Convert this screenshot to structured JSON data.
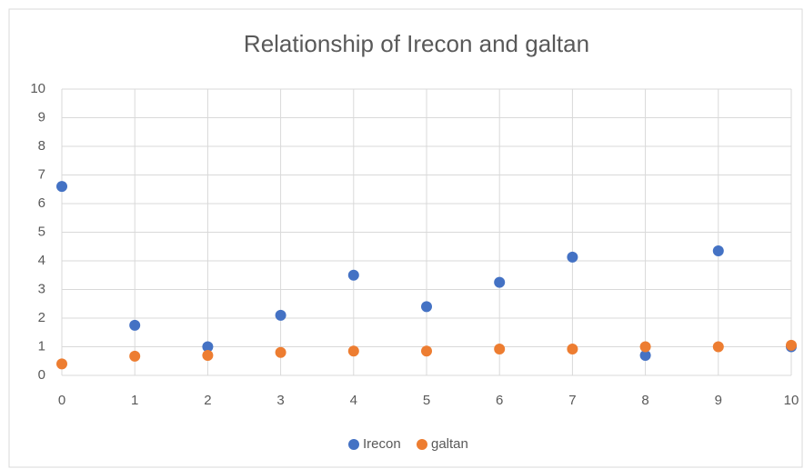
{
  "chart_data": {
    "type": "scatter",
    "title": "Relationship of Irecon and galtan",
    "x": [
      0,
      1,
      2,
      3,
      4,
      5,
      6,
      7,
      8,
      9,
      10
    ],
    "series": [
      {
        "name": "Irecon",
        "color": "#4472c4",
        "values": [
          6.6,
          1.75,
          1.0,
          2.1,
          3.5,
          2.4,
          3.25,
          4.13,
          0.7,
          4.35,
          1.0
        ]
      },
      {
        "name": "galtan",
        "color": "#ed7d31",
        "values": [
          0.4,
          0.67,
          0.7,
          0.8,
          0.85,
          0.85,
          0.92,
          0.92,
          1.0,
          1.0,
          1.05
        ]
      }
    ],
    "xlim": [
      0,
      10
    ],
    "xticks": [
      0,
      1,
      2,
      3,
      4,
      5,
      6,
      7,
      8,
      9,
      10
    ],
    "ylim": [
      0,
      10
    ],
    "yticks": [
      0,
      1,
      2,
      3,
      4,
      5,
      6,
      7,
      8,
      9,
      10
    ],
    "grid": true,
    "legend": "bottom"
  }
}
